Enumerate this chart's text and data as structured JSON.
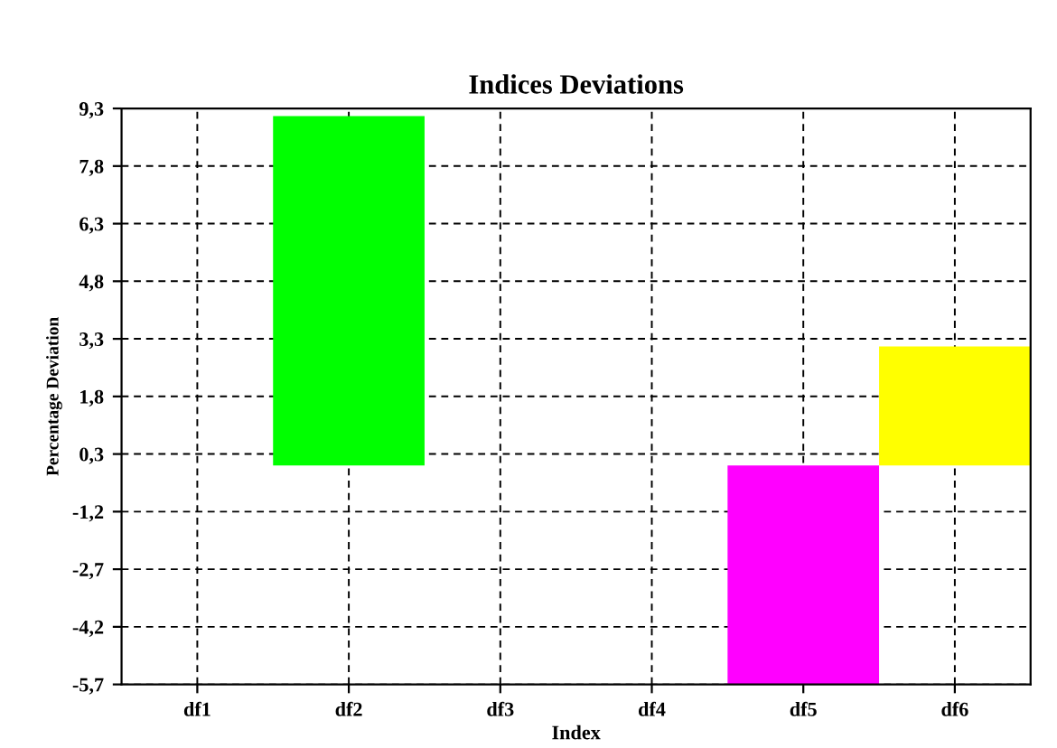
{
  "chart_data": {
    "type": "bar",
    "title": "Indices Deviations",
    "xlabel": "Index",
    "ylabel": "Percentage Deviation",
    "categories": [
      "df1",
      "df2",
      "df3",
      "df4",
      "df5",
      "df6"
    ],
    "values": [
      0,
      9.1,
      0,
      0,
      -5.7,
      3.1
    ],
    "colors": [
      "#000080",
      "#00ff00",
      "#008080",
      "#800000",
      "#ff00ff",
      "#ffff00"
    ],
    "ylim": [
      -5.7,
      9.3
    ],
    "yticks": [
      {
        "value": -5.7,
        "label": "-5,7"
      },
      {
        "value": -4.2,
        "label": "-4,2"
      },
      {
        "value": -2.7,
        "label": "-2,7"
      },
      {
        "value": -1.2,
        "label": "-1,2"
      },
      {
        "value": 0.3,
        "label": "0,3"
      },
      {
        "value": 1.8,
        "label": "1,8"
      },
      {
        "value": 3.3,
        "label": "3,3"
      },
      {
        "value": 4.8,
        "label": "4,8"
      },
      {
        "value": 6.3,
        "label": "6,3"
      },
      {
        "value": 7.8,
        "label": "7,8"
      },
      {
        "value": 9.3,
        "label": "9,3"
      }
    ],
    "grid": true,
    "line_style": "dashed"
  }
}
